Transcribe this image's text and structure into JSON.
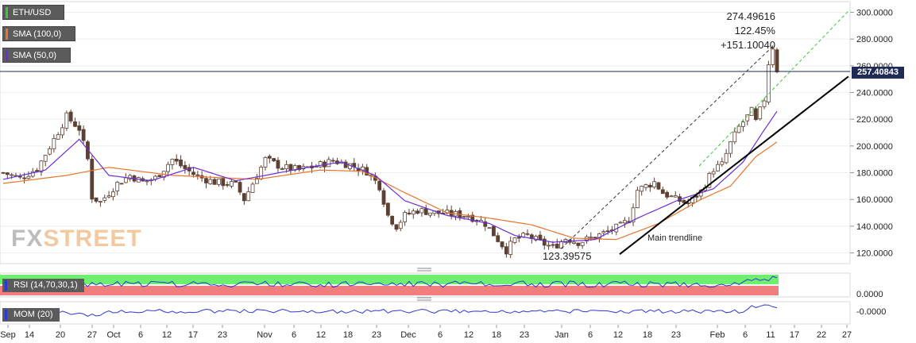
{
  "legend": {
    "ticker": "ETH/USD",
    "sma100": "SMA (100,0)",
    "sma50": "SMA (50,0)"
  },
  "colors": {
    "price_line": "#1f2a57",
    "sma100": "#e8752a",
    "sma50": "#6b2fd6",
    "trend_main": "#000000",
    "trend_channel": "#3fc43f",
    "rsi_over": "#6ef06e",
    "rsi_under": "#f07e7e",
    "indicator_line": "#2a38d8",
    "candle_up": "#ffffff",
    "candle_down": "#5c4033"
  },
  "watermark": {
    "part1": "FX",
    "part2": "STREET"
  },
  "chart_data": [
    {
      "type": "candlestick",
      "ticker": "ETH/USD",
      "y_ticks": [
        "300.0000",
        "280.0000",
        "260.0000",
        "240.0000",
        "220.0000",
        "200.0000",
        "180.0000",
        "160.0000",
        "140.0000",
        "120.0000"
      ],
      "ylim": [
        112,
        308
      ],
      "x_ticks": [
        "Sep",
        "14",
        "20",
        "27",
        "Oct",
        "6",
        "12",
        "17",
        "23",
        "Nov",
        "6",
        "12",
        "18",
        "23",
        "Dec",
        "6",
        "12",
        "18",
        "23",
        "Jan",
        "6",
        "12",
        "18",
        "23",
        "Feb",
        "6",
        "11",
        "17",
        "22",
        "27"
      ],
      "current_price": "257.40843",
      "annotations": {
        "high": "274.49616",
        "percent": "122.45%",
        "change": "+151.10040",
        "low": "123.39575",
        "trendline_label": "Main trendline"
      },
      "close_keypoints": [
        [
          0,
          180
        ],
        [
          4,
          176
        ],
        [
          8,
          183
        ],
        [
          12,
          205
        ],
        [
          15,
          222
        ],
        [
          18,
          213
        ],
        [
          20,
          190
        ],
        [
          21,
          162
        ],
        [
          23,
          158
        ],
        [
          25,
          165
        ],
        [
          27,
          172
        ],
        [
          30,
          178
        ],
        [
          33,
          173
        ],
        [
          36,
          176
        ],
        [
          40,
          190
        ],
        [
          43,
          183
        ],
        [
          46,
          177
        ],
        [
          50,
          173
        ],
        [
          55,
          171
        ],
        [
          57,
          160
        ],
        [
          60,
          178
        ],
        [
          62,
          190
        ],
        [
          66,
          184
        ],
        [
          70,
          182
        ],
        [
          74,
          185
        ],
        [
          78,
          189
        ],
        [
          82,
          186
        ],
        [
          86,
          181
        ],
        [
          89,
          170
        ],
        [
          91,
          148
        ],
        [
          93,
          140
        ],
        [
          95,
          148
        ],
        [
          98,
          152
        ],
        [
          102,
          150
        ],
        [
          106,
          149
        ],
        [
          110,
          148
        ],
        [
          114,
          142
        ],
        [
          117,
          130
        ],
        [
          119,
          122
        ],
        [
          121,
          130
        ],
        [
          124,
          133
        ],
        [
          127,
          128
        ],
        [
          130,
          124
        ],
        [
          133,
          131
        ],
        [
          136,
          128
        ],
        [
          139,
          131
        ],
        [
          143,
          136
        ],
        [
          146,
          140
        ],
        [
          148,
          145
        ],
        [
          150,
          167
        ],
        [
          152,
          170
        ],
        [
          154,
          173
        ],
        [
          156,
          165
        ],
        [
          159,
          160
        ],
        [
          162,
          157
        ],
        [
          165,
          166
        ],
        [
          168,
          183
        ],
        [
          170,
          186
        ],
        [
          172,
          202
        ],
        [
          174,
          214
        ],
        [
          176,
          222
        ],
        [
          177,
          226
        ],
        [
          178,
          218
        ],
        [
          180,
          235
        ],
        [
          181,
          262
        ],
        [
          182,
          274
        ],
        [
          183,
          257
        ]
      ],
      "sma100_keypoints": [
        [
          0,
          172
        ],
        [
          15,
          178
        ],
        [
          25,
          184
        ],
        [
          40,
          178
        ],
        [
          60,
          175
        ],
        [
          75,
          182
        ],
        [
          85,
          181
        ],
        [
          95,
          165
        ],
        [
          105,
          150
        ],
        [
          115,
          146
        ],
        [
          125,
          141
        ],
        [
          135,
          131
        ],
        [
          145,
          130
        ],
        [
          155,
          142
        ],
        [
          165,
          160
        ],
        [
          172,
          170
        ],
        [
          178,
          192
        ],
        [
          183,
          203
        ]
      ],
      "sma50_keypoints": [
        [
          0,
          175
        ],
        [
          10,
          182
        ],
        [
          18,
          205
        ],
        [
          25,
          178
        ],
        [
          35,
          174
        ],
        [
          45,
          184
        ],
        [
          55,
          174
        ],
        [
          62,
          178
        ],
        [
          72,
          184
        ],
        [
          80,
          188
        ],
        [
          88,
          178
        ],
        [
          95,
          159
        ],
        [
          105,
          148
        ],
        [
          115,
          142
        ],
        [
          121,
          133
        ],
        [
          130,
          128
        ],
        [
          140,
          130
        ],
        [
          150,
          146
        ],
        [
          160,
          160
        ],
        [
          168,
          168
        ],
        [
          175,
          188
        ],
        [
          180,
          212
        ],
        [
          183,
          226
        ]
      ]
    },
    {
      "type": "line",
      "indicator": "RSI",
      "label": "RSI (14,70,30,1)",
      "y_ticks": [
        "0.0000"
      ],
      "zones": {
        "overbought": 70,
        "oversold": 30
      }
    },
    {
      "type": "line",
      "indicator": "MOM",
      "label": "MOM (20)",
      "y_ticks": [
        "-0.0000"
      ]
    }
  ]
}
